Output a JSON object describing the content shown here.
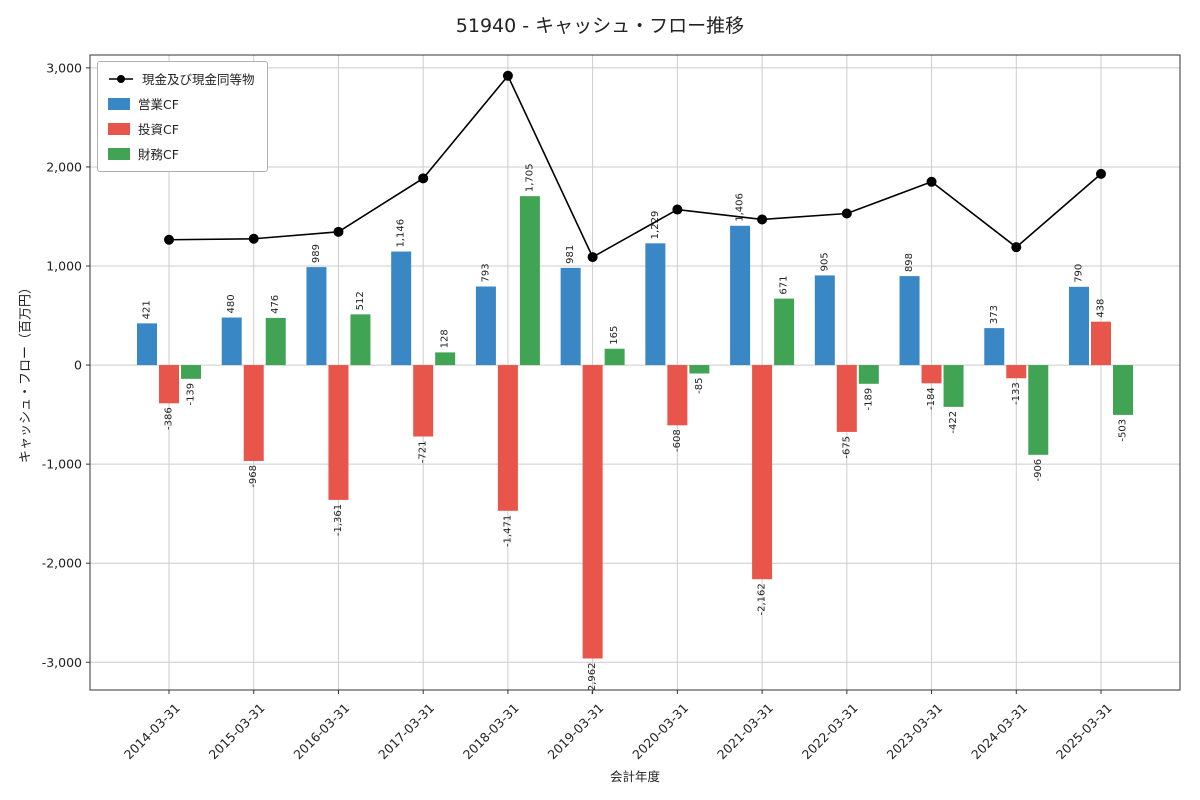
{
  "chart_data": {
    "type": "bar",
    "title": "51940 - キャッシュ・フロー推移",
    "xlabel": "会計年度",
    "ylabel": "キャッシュ・フロー（百万円）",
    "categories": [
      "2014-03-31",
      "2015-03-31",
      "2016-03-31",
      "2017-03-31",
      "2018-03-31",
      "2019-03-31",
      "2020-03-31",
      "2021-03-31",
      "2022-03-31",
      "2023-03-31",
      "2024-03-31",
      "2025-03-31"
    ],
    "series": [
      {
        "name": "営業CF",
        "type": "bar",
        "color": "#3a87c5",
        "values": [
          421,
          480,
          989,
          1146,
          793,
          981,
          1229,
          1406,
          905,
          898,
          373,
          790
        ]
      },
      {
        "name": "投資CF",
        "type": "bar",
        "color": "#e8554a",
        "values": [
          -386,
          -968,
          -1361,
          -721,
          -1471,
          -2962,
          -608,
          -2162,
          -675,
          -184,
          -133,
          438
        ]
      },
      {
        "name": "財務CF",
        "type": "bar",
        "color": "#41a454",
        "values": [
          -139,
          476,
          512,
          128,
          1705,
          165,
          -85,
          671,
          -189,
          -422,
          -906,
          -503
        ]
      },
      {
        "name": "現金及び現金同等物",
        "type": "line",
        "color": "#000000",
        "values": [
          1265,
          1275,
          1345,
          1885,
          2920,
          1090,
          1570,
          1470,
          1530,
          1850,
          1190,
          1930
        ]
      }
    ],
    "yticks": [
      -3000,
      -2000,
      -1000,
      0,
      1000,
      2000,
      3000
    ],
    "ylim": [
      -3280,
      3130
    ],
    "grid": true,
    "legend_position": "upper-left"
  }
}
